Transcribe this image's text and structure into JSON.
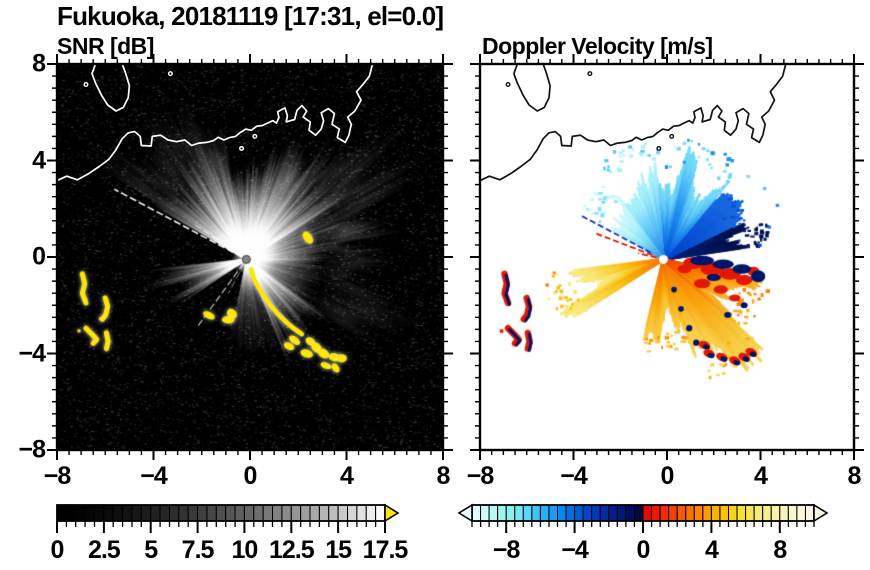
{
  "figure_title": "Fukuoka, 20181119 [17:31, el=0.0]",
  "chart_data": {
    "type": "heatmap",
    "description": "Dual-panel Doppler lidar/radar PPI scan over Fukuoka with grayscale SNR panel and diverging-color Doppler velocity panel",
    "coastline": {
      "mainland": [
        [
          -8.15,
          3.1
        ],
        [
          -7.6,
          3.35
        ],
        [
          -7.15,
          3.2
        ],
        [
          -6.7,
          3.45
        ],
        [
          -6.25,
          3.75
        ],
        [
          -5.85,
          4.05
        ],
        [
          -5.55,
          4.45
        ],
        [
          -5.3,
          4.9
        ],
        [
          -5.05,
          5.15
        ],
        [
          -4.78,
          5.2
        ],
        [
          -4.55,
          5.0
        ],
        [
          -4.5,
          4.62
        ],
        [
          -4.1,
          4.6
        ],
        [
          -4.05,
          5.0
        ],
        [
          -3.7,
          5.05
        ],
        [
          -3.4,
          4.85
        ],
        [
          -3.05,
          4.78
        ],
        [
          -2.7,
          4.85
        ],
        [
          -2.42,
          4.62
        ],
        [
          -2.12,
          4.72
        ],
        [
          -1.8,
          4.75
        ],
        [
          -1.5,
          4.83
        ],
        [
          -1.32,
          4.96
        ],
        [
          -1.08,
          4.85
        ],
        [
          -0.85,
          4.95
        ],
        [
          -0.6,
          5.0
        ],
        [
          -0.42,
          5.15
        ],
        [
          -0.18,
          5.3
        ],
        [
          0.05,
          5.25
        ],
        [
          0.28,
          5.42
        ],
        [
          0.52,
          5.45
        ],
        [
          0.72,
          5.55
        ],
        [
          0.95,
          5.65
        ],
        [
          1.1,
          5.55
        ],
        [
          1.2,
          5.78
        ],
        [
          1.15,
          6.02
        ],
        [
          1.45,
          6.18
        ],
        [
          1.55,
          5.85
        ],
        [
          1.5,
          5.6
        ],
        [
          1.85,
          5.7
        ],
        [
          1.95,
          6.08
        ],
        [
          2.15,
          6.28
        ],
        [
          2.35,
          6.05
        ],
        [
          2.2,
          5.8
        ],
        [
          2.5,
          5.6
        ],
        [
          2.45,
          5.25
        ],
        [
          2.72,
          5.05
        ],
        [
          2.95,
          5.3
        ],
        [
          3.05,
          5.65
        ],
        [
          2.95,
          5.98
        ],
        [
          3.25,
          6.15
        ],
        [
          3.5,
          5.95
        ],
        [
          3.4,
          5.5
        ],
        [
          3.7,
          5.3
        ],
        [
          3.62,
          4.95
        ],
        [
          3.95,
          4.75
        ],
        [
          4.1,
          5.05
        ],
        [
          4.2,
          5.5
        ],
        [
          4.05,
          5.8
        ],
        [
          4.35,
          6.05
        ],
        [
          4.6,
          6.5
        ],
        [
          4.42,
          6.85
        ],
        [
          4.68,
          7.15
        ],
        [
          4.95,
          7.5
        ],
        [
          5.12,
          8.15
        ]
      ],
      "island": [
        [
          -6.35,
          8.15
        ],
        [
          -6.55,
          7.6
        ],
        [
          -6.4,
          7.2
        ],
        [
          -6.15,
          6.7
        ],
        [
          -5.9,
          6.3
        ],
        [
          -5.55,
          6.05
        ],
        [
          -5.25,
          6.2
        ],
        [
          -5.05,
          6.6
        ],
        [
          -5.0,
          7.1
        ],
        [
          -5.15,
          7.6
        ],
        [
          -5.35,
          8.15
        ]
      ],
      "islets": [
        [
          -6.8,
          7.15
        ],
        [
          -3.3,
          7.6
        ],
        [
          0.2,
          5.0
        ],
        [
          -0.35,
          4.5
        ]
      ]
    },
    "radar_center": [
      -0.15,
      -0.1
    ],
    "ship_tracks": [
      [
        [
          -6.95,
          -0.7
        ],
        [
          -6.85,
          -1.1
        ],
        [
          -6.95,
          -1.5
        ],
        [
          -6.8,
          -1.9
        ]
      ],
      [
        [
          -6.0,
          -1.7
        ],
        [
          -5.9,
          -2.05
        ],
        [
          -5.98,
          -2.4
        ],
        [
          -6.12,
          -2.58
        ]
      ],
      [
        [
          -6.8,
          -2.95
        ],
        [
          -6.55,
          -3.2
        ],
        [
          -6.35,
          -3.42
        ],
        [
          -6.5,
          -3.58
        ]
      ],
      [
        [
          -5.95,
          -3.15
        ],
        [
          -5.88,
          -3.5
        ],
        [
          -5.95,
          -3.8
        ]
      ]
    ],
    "ship_dots": [
      [
        -7.15,
        -3.0
      ],
      [
        -6.25,
        -2.5
      ]
    ],
    "panels": [
      {
        "id": "snr",
        "title": "SNR [dB]",
        "xlim": [
          -8,
          8
        ],
        "ylim": [
          -8,
          8
        ],
        "xticks": [
          -8,
          -4,
          0,
          4,
          8
        ],
        "yticks": [
          8,
          4,
          0,
          -4,
          -8
        ],
        "xtick_labels": [
          "−8",
          "−4",
          "0",
          "4",
          "8"
        ],
        "ytick_labels": [
          "8",
          "4",
          "0",
          "−4",
          "−8"
        ],
        "minor_step": 0.5,
        "background": "#000000",
        "coast_color": "#ffffff",
        "high_snr_color": "#ffe600",
        "echo": {
          "fans": [
            {
              "a0": 30,
              "a1": 150,
              "r": 4.5,
              "intensity": 0.85
            },
            {
              "a0": -5,
              "a1": 30,
              "r": 3.8,
              "intensity": 0.5
            },
            {
              "a0": -35,
              "a1": -5,
              "r": 3.0,
              "intensity": 0.3
            },
            {
              "a0": -68,
              "a1": -35,
              "r": 4.9,
              "intensity": 0.6
            },
            {
              "a0": -102,
              "a1": -68,
              "r": 3.4,
              "intensity": 0.16
            },
            {
              "a0": 186,
              "a1": 214,
              "r": 4.5,
              "intensity": 0.42
            },
            {
              "a0": 10,
              "a1": 65,
              "r": 7.0,
              "r0": 3.0,
              "intensity": 0.12
            },
            {
              "a0": 100,
              "a1": 148,
              "r": 6.2,
              "r0": 3.2,
              "intensity": 0.1
            },
            {
              "a0": -35,
              "a1": 20,
              "r": 6.8,
              "r0": 3.2,
              "intensity": 0.08
            }
          ],
          "rays": [
            {
              "az": 152,
              "r0": 0.2,
              "r1": 6.2,
              "w": 1.6,
              "alpha": 0.95
            },
            {
              "az": 146,
              "r0": 0.2,
              "r1": 2.6,
              "w": 1.1,
              "alpha": 0.65
            },
            {
              "az": 234,
              "r0": 0.2,
              "r1": 3.4,
              "w": 1.1,
              "alpha": 0.8
            },
            {
              "az": 242,
              "r0": 0.2,
              "r1": 1.6,
              "w": 1.0,
              "alpha": 0.5
            }
          ],
          "chain_track": [
            [
              0.05,
              -0.5
            ],
            [
              0.18,
              -0.95
            ],
            [
              0.38,
              -1.3
            ],
            [
              0.6,
              -1.65
            ],
            [
              0.85,
              -2.0
            ],
            [
              1.15,
              -2.35
            ],
            [
              1.45,
              -2.65
            ],
            [
              1.8,
              -2.95
            ],
            [
              2.15,
              -3.2
            ]
          ],
          "chain_blobs": [
            [
              1.85,
              -3.45
            ],
            [
              2.5,
              -3.5
            ],
            [
              2.75,
              -3.75
            ],
            [
              2.35,
              -4.0
            ],
            [
              3.05,
              -4.0
            ],
            [
              3.5,
              -4.15
            ],
            [
              3.8,
              -4.2
            ],
            [
              3.15,
              -4.5
            ],
            [
              3.55,
              -4.6
            ],
            [
              1.62,
              -3.7
            ],
            [
              2.4,
              0.8
            ],
            [
              -0.75,
              -2.35
            ],
            [
              -0.9,
              -2.6
            ],
            [
              -1.7,
              -2.42
            ]
          ]
        },
        "colorbar": {
          "min": 0,
          "max": 17.5,
          "cell_step": 0.5,
          "tick_values": [
            0,
            2.5,
            5,
            7.5,
            10,
            12.5,
            15,
            17.5
          ],
          "tick_labels": [
            "0",
            "2.5",
            "5",
            "7.5",
            "10",
            "12.5",
            "15",
            "17.5"
          ],
          "minor_step": 0.5,
          "colors": [
            "#000000",
            "#010101",
            "#030303",
            "#050505",
            "#080808",
            "#0b0b0b",
            "#0f0f0f",
            "#131313",
            "#171717",
            "#1c1c1c",
            "#212121",
            "#262626",
            "#2c2c2c",
            "#333333",
            "#393939",
            "#404040",
            "#474747",
            "#4e4e4e",
            "#565656",
            "#5e5e5e",
            "#666666",
            "#6f6f6f",
            "#787878",
            "#818181",
            "#8b8b8b",
            "#959595",
            "#9f9f9f",
            "#a9a9a9",
            "#b4b4b4",
            "#bfbfbf",
            "#cacaca",
            "#d5d5d5",
            "#e1e1e1",
            "#ededed",
            "#f9f9f9"
          ],
          "arrow_left": null,
          "arrow_right": "#ffe600"
        }
      },
      {
        "id": "velocity",
        "title": "Doppler Velocity [m/s]",
        "xlim": [
          -8,
          8
        ],
        "ylim": [
          -8,
          8
        ],
        "xticks": [
          -8,
          -4,
          0,
          4,
          8
        ],
        "yticks": [
          8,
          4,
          0,
          -4,
          -8
        ],
        "xtick_labels": [
          "−8",
          "−4",
          "0",
          "4",
          "8"
        ],
        "ytick_labels": [],
        "minor_step": 0.5,
        "background": "#ffffff",
        "coast_color": "#111111",
        "echo": {
          "fans": [
            {
              "a0": 8,
              "a1": 26,
              "r": 3.9,
              "colors": [
                "#00207a",
                "#001a66",
                "#000f4d"
              ]
            },
            {
              "a0": 26,
              "a1": 50,
              "r": 3.3,
              "colors": [
                "#0040cc",
                "#0c52d6",
                "#1668e0"
              ]
            },
            {
              "a0": 50,
              "a1": 95,
              "r": 4.4,
              "colors": [
                "#0050d8",
                "#2090f0",
                "#70d8f8"
              ]
            },
            {
              "a0": 95,
              "a1": 126,
              "r": 4.6,
              "colors": [
                "#2080ec",
                "#58c4f6",
                "#a8f0fc"
              ]
            },
            {
              "a0": 126,
              "a1": 150,
              "r": 3.5,
              "colors": [
                "#3a98f0",
                "#80e0f8",
                "#c8f8fc"
              ]
            },
            {
              "a0": 187,
              "a1": 213,
              "r": 4.4,
              "colors": [
                "#f87800",
                "#f8c010",
                "#f8e878"
              ]
            },
            {
              "a0": 256,
              "a1": 288,
              "r": 3.3,
              "colors": [
                "#f86800",
                "#f89c00",
                "#f8c838"
              ]
            },
            {
              "a0": 288,
              "a1": 318,
              "r": 4.7,
              "colors": [
                "#f87400",
                "#f8a810",
                "#f8d048"
              ]
            },
            {
              "a0": 318,
              "a1": 347,
              "r": 3.8,
              "colors": [
                "#f04800",
                "#f88000",
                "#f8b028"
              ]
            }
          ],
          "rays": [
            {
              "az": 152,
              "r0": 0.6,
              "r1": 3.9,
              "w": 1.8,
              "color": "#1030c8"
            },
            {
              "az": 159,
              "r0": 0.5,
              "r1": 3.1,
              "w": 1.8,
              "color": "#e01000"
            },
            {
              "az": 166,
              "r0": 0.3,
              "r1": 1.1,
              "w": 1.8,
              "color": "#e01000"
            }
          ],
          "red_patches": [
            [
              1.15,
              -0.25,
              0.45,
              0.25
            ],
            [
              1.95,
              -0.5,
              0.5,
              0.28
            ],
            [
              2.7,
              -0.7,
              0.45,
              0.25
            ],
            [
              3.3,
              -0.95,
              0.35,
              0.22
            ],
            [
              1.5,
              -1.1,
              0.35,
              0.2
            ],
            [
              2.3,
              -1.35,
              0.3,
              0.18
            ],
            [
              0.75,
              -0.5,
              0.3,
              0.18
            ],
            [
              3.7,
              -0.6,
              0.25,
              0.2
            ],
            [
              2.9,
              -1.7,
              0.25,
              0.15
            ]
          ],
          "navy_patches": [
            [
              1.5,
              -0.15,
              0.5,
              0.2
            ],
            [
              2.4,
              -0.3,
              0.45,
              0.2
            ],
            [
              3.2,
              -0.5,
              0.4,
              0.2
            ],
            [
              3.9,
              -0.8,
              0.3,
              0.25
            ],
            [
              2.0,
              -0.85,
              0.3,
              0.15
            ],
            [
              0.3,
              -1.35,
              0.12,
              0.12
            ],
            [
              0.6,
              -2.15,
              0.12,
              0.12
            ],
            [
              0.95,
              -2.95,
              0.13,
              0.13
            ],
            [
              1.25,
              -3.55,
              0.13,
              0.13
            ],
            [
              2.6,
              -2.4,
              0.15,
              0.12
            ],
            [
              3.3,
              -2.0,
              0.15,
              0.12
            ]
          ],
          "bottom_ships": [
            [
              1.6,
              -3.65
            ],
            [
              1.8,
              -4.0
            ],
            [
              2.35,
              -4.15
            ],
            [
              2.9,
              -4.3
            ],
            [
              3.3,
              -4.15
            ],
            [
              3.6,
              -3.95
            ]
          ],
          "speckles": [
            [
              4.3,
              1.3,
              "#1a78e8"
            ],
            [
              4.65,
              2.2,
              "#2a8cf0"
            ],
            [
              3.9,
              0.55,
              "#0040c0"
            ],
            [
              4.1,
              2.9,
              "#58c4f6"
            ],
            [
              3.4,
              3.4,
              "#80d8f8"
            ],
            [
              -4.9,
              -0.6,
              "#f89c00"
            ],
            [
              -5.2,
              -1.1,
              "#f87400"
            ],
            [
              -4.6,
              -1.35,
              "#f8b028"
            ],
            [
              2.2,
              2.9,
              "#9ae8fa"
            ],
            [
              1.3,
              4.2,
              "#b8f4fc"
            ],
            [
              0.3,
              4.6,
              "#c8f8fc"
            ]
          ]
        },
        "colorbar": {
          "min": -10,
          "max": 10,
          "cell_step": 0.5,
          "tick_values": [
            -8,
            -4,
            0,
            4,
            8
          ],
          "tick_labels": [
            "−8",
            "−4",
            "0",
            "4",
            "8"
          ],
          "minor_step": 0.5,
          "colors": [
            "#e0ffff",
            "#ccfcf8",
            "#b8f8f0",
            "#a0f4ec",
            "#88f0f0",
            "#70e8f8",
            "#58d8f8",
            "#40c4f8",
            "#28b0f8",
            "#189cf4",
            "#0888ec",
            "#0470e0",
            "#005cd4",
            "#0048c8",
            "#0038b8",
            "#002ca4",
            "#002090",
            "#001878",
            "#001060",
            "#000a40",
            "#e80800",
            "#f01800",
            "#f42c00",
            "#f84000",
            "#f85800",
            "#f87000",
            "#f88800",
            "#f89c00",
            "#f8b000",
            "#f8c400",
            "#f8d410",
            "#f8e030",
            "#f8e850",
            "#f8ec70",
            "#f8f090",
            "#f8f2a8",
            "#f8f4bc",
            "#f8f6cc",
            "#f8f8d8",
            "#f8f8e0"
          ],
          "arrow_left": "#eaffff",
          "arrow_right": "#f8f8e8"
        }
      }
    ]
  }
}
